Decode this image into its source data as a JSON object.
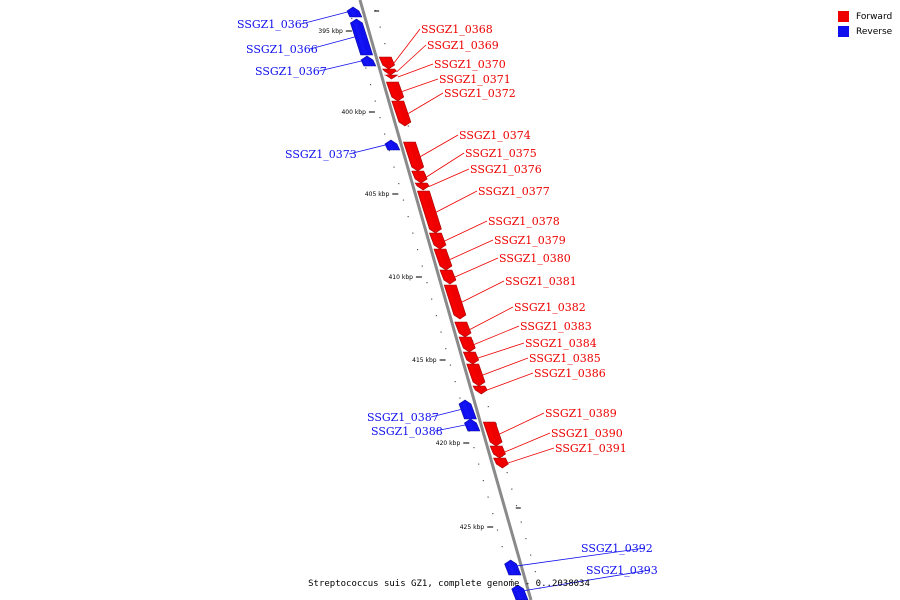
{
  "legend": [
    {
      "label": "Forward",
      "color": "#ee0000"
    },
    {
      "label": "Reverse",
      "color": "#1010ee"
    }
  ],
  "caption": "Streptococcus suis GZ1, complete genome - 0..2038034",
  "colors": {
    "forward": "#ee0000",
    "reverse": "#1010ee",
    "backbone": "#8a8a8a",
    "tick": "#222222"
  },
  "ticks": [
    "395 kbp",
    "400 kbp",
    "405 kbp",
    "410 kbp",
    "415 kbp",
    "420 kbp",
    "425 kbp"
  ],
  "genes": [
    {
      "name": "SSGZ1_0365",
      "strand": "reverse"
    },
    {
      "name": "SSGZ1_0366",
      "strand": "reverse"
    },
    {
      "name": "SSGZ1_0367",
      "strand": "reverse"
    },
    {
      "name": "SSGZ1_0368",
      "strand": "forward"
    },
    {
      "name": "SSGZ1_0369",
      "strand": "forward"
    },
    {
      "name": "SSGZ1_0370",
      "strand": "forward"
    },
    {
      "name": "SSGZ1_0371",
      "strand": "forward"
    },
    {
      "name": "SSGZ1_0372",
      "strand": "forward"
    },
    {
      "name": "SSGZ1_0373",
      "strand": "reverse"
    },
    {
      "name": "SSGZ1_0374",
      "strand": "forward"
    },
    {
      "name": "SSGZ1_0375",
      "strand": "forward"
    },
    {
      "name": "SSGZ1_0376",
      "strand": "forward"
    },
    {
      "name": "SSGZ1_0377",
      "strand": "forward"
    },
    {
      "name": "SSGZ1_0378",
      "strand": "forward"
    },
    {
      "name": "SSGZ1_0379",
      "strand": "forward"
    },
    {
      "name": "SSGZ1_0380",
      "strand": "forward"
    },
    {
      "name": "SSGZ1_0381",
      "strand": "forward"
    },
    {
      "name": "SSGZ1_0382",
      "strand": "forward"
    },
    {
      "name": "SSGZ1_0383",
      "strand": "forward"
    },
    {
      "name": "SSGZ1_0384",
      "strand": "forward"
    },
    {
      "name": "SSGZ1_0385",
      "strand": "forward"
    },
    {
      "name": "SSGZ1_0386",
      "strand": "forward"
    },
    {
      "name": "SSGZ1_0387",
      "strand": "reverse"
    },
    {
      "name": "SSGZ1_0388",
      "strand": "reverse"
    },
    {
      "name": "SSGZ1_0389",
      "strand": "forward"
    },
    {
      "name": "SSGZ1_0390",
      "strand": "forward"
    },
    {
      "name": "SSGZ1_0391",
      "strand": "forward"
    },
    {
      "name": "SSGZ1_0392",
      "strand": "reverse"
    },
    {
      "name": "SSGZ1_0393",
      "strand": "reverse"
    }
  ]
}
